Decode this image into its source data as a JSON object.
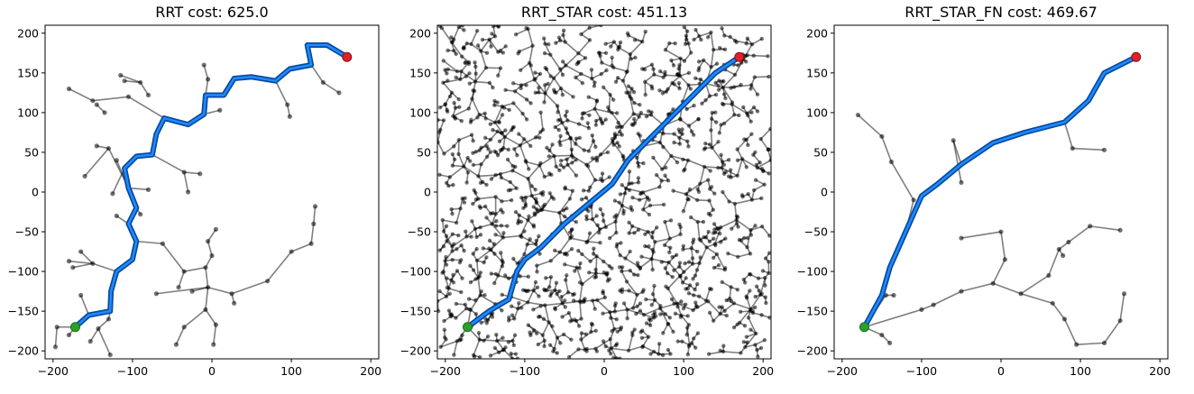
{
  "chart_data": [
    {
      "type": "scatter",
      "title": "RRT cost: 625.0",
      "xlim": [
        -210,
        210
      ],
      "ylim": [
        -210,
        210
      ],
      "xticks": [
        -200,
        -100,
        0,
        100,
        200
      ],
      "yticks": [
        -200,
        -150,
        -100,
        -50,
        0,
        50,
        100,
        150,
        200
      ],
      "grid": false,
      "start": [
        -172,
        -170
      ],
      "goal": [
        170,
        170
      ],
      "path": [
        [
          -172,
          -170
        ],
        [
          -155,
          -155
        ],
        [
          -128,
          -150
        ],
        [
          -127,
          -125
        ],
        [
          -120,
          -100
        ],
        [
          -100,
          -85
        ],
        [
          -95,
          -62
        ],
        [
          -105,
          -40
        ],
        [
          -95,
          -20
        ],
        [
          -105,
          5
        ],
        [
          -110,
          30
        ],
        [
          -95,
          45
        ],
        [
          -75,
          47
        ],
        [
          -70,
          73
        ],
        [
          -60,
          93
        ],
        [
          -30,
          85
        ],
        [
          -10,
          98
        ],
        [
          -8,
          122
        ],
        [
          15,
          122
        ],
        [
          28,
          143
        ],
        [
          50,
          145
        ],
        [
          80,
          140
        ],
        [
          98,
          155
        ],
        [
          125,
          160
        ],
        [
          120,
          185
        ],
        [
          145,
          185
        ],
        [
          170,
          170
        ]
      ],
      "edges": [
        [
          [
            -172,
            -170
          ],
          [
            -195,
            -170
          ]
        ],
        [
          [
            -195,
            -170
          ],
          [
            -197,
            -195
          ]
        ],
        [
          [
            -172,
            -170
          ],
          [
            -180,
            -180
          ]
        ],
        [
          [
            -155,
            -155
          ],
          [
            -165,
            -130
          ]
        ],
        [
          [
            -128,
            -150
          ],
          [
            -130,
            -160
          ]
        ],
        [
          [
            -130,
            -160
          ],
          [
            -143,
            -172
          ]
        ],
        [
          [
            -143,
            -172
          ],
          [
            -153,
            -188
          ]
        ],
        [
          [
            -143,
            -172
          ],
          [
            -128,
            -205
          ]
        ],
        [
          [
            -120,
            -100
          ],
          [
            -150,
            -90
          ]
        ],
        [
          [
            -150,
            -90
          ],
          [
            -165,
            -75
          ]
        ],
        [
          [
            -150,
            -90
          ],
          [
            -175,
            -95
          ]
        ],
        [
          [
            -150,
            -90
          ],
          [
            -180,
            -87
          ]
        ],
        [
          [
            -95,
            -62
          ],
          [
            -62,
            -65
          ]
        ],
        [
          [
            -62,
            -65
          ],
          [
            -35,
            -100
          ]
        ],
        [
          [
            -35,
            -100
          ],
          [
            -42,
            -120
          ]
        ],
        [
          [
            -35,
            -100
          ],
          [
            -8,
            -95
          ]
        ],
        [
          [
            -8,
            -95
          ],
          [
            0,
            -80
          ]
        ],
        [
          [
            0,
            -80
          ],
          [
            -5,
            -62
          ]
        ],
        [
          [
            -5,
            -62
          ],
          [
            5,
            -47
          ]
        ],
        [
          [
            -8,
            -95
          ],
          [
            -5,
            -120
          ]
        ],
        [
          [
            -5,
            -120
          ],
          [
            -25,
            -125
          ]
        ],
        [
          [
            -5,
            -120
          ],
          [
            -70,
            -128
          ]
        ],
        [
          [
            -5,
            -120
          ],
          [
            -8,
            -148
          ]
        ],
        [
          [
            -8,
            -148
          ],
          [
            -35,
            -170
          ]
        ],
        [
          [
            -35,
            -170
          ],
          [
            -45,
            -192
          ]
        ],
        [
          [
            -8,
            -148
          ],
          [
            5,
            -167
          ]
        ],
        [
          [
            5,
            -167
          ],
          [
            2,
            -192
          ]
        ],
        [
          [
            -5,
            -120
          ],
          [
            25,
            -128
          ]
        ],
        [
          [
            25,
            -128
          ],
          [
            28,
            -140
          ]
        ],
        [
          [
            25,
            -128
          ],
          [
            70,
            -112
          ]
        ],
        [
          [
            70,
            -112
          ],
          [
            100,
            -75
          ]
        ],
        [
          [
            100,
            -75
          ],
          [
            125,
            -65
          ]
        ],
        [
          [
            125,
            -65
          ],
          [
            128,
            -40
          ]
        ],
        [
          [
            128,
            -40
          ],
          [
            130,
            -18
          ]
        ],
        [
          [
            -105,
            -40
          ],
          [
            -120,
            -30
          ]
        ],
        [
          [
            -95,
            -20
          ],
          [
            -90,
            -28
          ]
        ],
        [
          [
            -105,
            5
          ],
          [
            -80,
            3
          ]
        ],
        [
          [
            -105,
            5
          ],
          [
            -120,
            40
          ]
        ],
        [
          [
            -75,
            47
          ],
          [
            -35,
            25
          ]
        ],
        [
          [
            -35,
            25
          ],
          [
            -30,
            0
          ]
        ],
        [
          [
            -35,
            25
          ],
          [
            -15,
            23
          ]
        ],
        [
          [
            -105,
            5
          ],
          [
            -130,
            55
          ]
        ],
        [
          [
            -130,
            55
          ],
          [
            -145,
            58
          ]
        ],
        [
          [
            -130,
            55
          ],
          [
            -160,
            20
          ]
        ],
        [
          [
            -110,
            30
          ],
          [
            -125,
            -2
          ]
        ],
        [
          [
            -60,
            93
          ],
          [
            -105,
            120
          ]
        ],
        [
          [
            -105,
            120
          ],
          [
            -150,
            115
          ]
        ],
        [
          [
            -150,
            115
          ],
          [
            -180,
            130
          ]
        ],
        [
          [
            -80,
            122
          ],
          [
            -90,
            138
          ]
        ],
        [
          [
            -90,
            138
          ],
          [
            -110,
            140
          ]
        ],
        [
          [
            -90,
            138
          ],
          [
            -115,
            147
          ]
        ],
        [
          [
            -135,
            100
          ],
          [
            -145,
            110
          ]
        ],
        [
          [
            -10,
            98
          ],
          [
            10,
            103
          ]
        ],
        [
          [
            -8,
            122
          ],
          [
            -5,
            142
          ]
        ],
        [
          [
            -5,
            142
          ],
          [
            -10,
            160
          ]
        ],
        [
          [
            80,
            140
          ],
          [
            95,
            110
          ]
        ],
        [
          [
            95,
            110
          ],
          [
            98,
            95
          ]
        ],
        [
          [
            125,
            160
          ],
          [
            140,
            138
          ]
        ],
        [
          [
            140,
            138
          ],
          [
            160,
            125
          ]
        ]
      ]
    },
    {
      "type": "scatter",
      "title": "RRT_STAR cost: 451.13",
      "xlim": [
        -210,
        210
      ],
      "ylim": [
        -210,
        210
      ],
      "xticks": [
        -200,
        -100,
        0,
        100,
        200
      ],
      "yticks": [
        -200,
        -150,
        -100,
        -50,
        0,
        50,
        100,
        150,
        200
      ],
      "grid": false,
      "start": [
        -172,
        -170
      ],
      "goal": [
        170,
        170
      ],
      "path": [
        [
          -172,
          -170
        ],
        [
          -145,
          -150
        ],
        [
          -120,
          -135
        ],
        [
          -110,
          -100
        ],
        [
          -100,
          -85
        ],
        [
          -80,
          -70
        ],
        [
          -50,
          -40
        ],
        [
          -20,
          -15
        ],
        [
          10,
          10
        ],
        [
          30,
          40
        ],
        [
          60,
          70
        ],
        [
          100,
          110
        ],
        [
          140,
          150
        ],
        [
          170,
          170
        ]
      ],
      "random_tree": true
    },
    {
      "type": "scatter",
      "title": "RRT_STAR_FN cost: 469.67",
      "xlim": [
        -210,
        210
      ],
      "ylim": [
        -210,
        210
      ],
      "xticks": [
        -200,
        -100,
        0,
        100,
        200
      ],
      "yticks": [
        -200,
        -150,
        -100,
        -50,
        0,
        50,
        100,
        150,
        200
      ],
      "grid": false,
      "start": [
        -172,
        -170
      ],
      "goal": [
        170,
        170
      ],
      "path": [
        [
          -172,
          -170
        ],
        [
          -150,
          -130
        ],
        [
          -140,
          -95
        ],
        [
          -120,
          -50
        ],
        [
          -100,
          -5
        ],
        [
          -80,
          10
        ],
        [
          -50,
          35
        ],
        [
          -10,
          62
        ],
        [
          30,
          75
        ],
        [
          80,
          88
        ],
        [
          110,
          115
        ],
        [
          130,
          150
        ],
        [
          170,
          170
        ]
      ],
      "edges": [
        [
          [
            -172,
            -170
          ],
          [
            -145,
            -130
          ]
        ],
        [
          [
            -145,
            -130
          ],
          [
            -135,
            -130
          ]
        ],
        [
          [
            -172,
            -170
          ],
          [
            -150,
            -180
          ]
        ],
        [
          [
            -150,
            -180
          ],
          [
            -140,
            -190
          ]
        ],
        [
          [
            -172,
            -170
          ],
          [
            -100,
            -148
          ]
        ],
        [
          [
            -100,
            -148
          ],
          [
            -85,
            -142
          ]
        ],
        [
          [
            -85,
            -142
          ],
          [
            -50,
            -125
          ]
        ],
        [
          [
            -50,
            -125
          ],
          [
            -10,
            -115
          ]
        ],
        [
          [
            -10,
            -115
          ],
          [
            5,
            -85
          ]
        ],
        [
          [
            5,
            -85
          ],
          [
            0,
            -50
          ]
        ],
        [
          [
            0,
            -50
          ],
          [
            -50,
            -58
          ]
        ],
        [
          [
            -10,
            -115
          ],
          [
            25,
            -128
          ]
        ],
        [
          [
            25,
            -128
          ],
          [
            65,
            -140
          ]
        ],
        [
          [
            65,
            -140
          ],
          [
            80,
            -160
          ]
        ],
        [
          [
            80,
            -160
          ],
          [
            95,
            -192
          ]
        ],
        [
          [
            95,
            -192
          ],
          [
            130,
            -190
          ]
        ],
        [
          [
            130,
            -190
          ],
          [
            150,
            -162
          ]
        ],
        [
          [
            150,
            -162
          ],
          [
            155,
            -128
          ]
        ],
        [
          [
            25,
            -128
          ],
          [
            60,
            -105
          ]
        ],
        [
          [
            60,
            -105
          ],
          [
            73,
            -72
          ]
        ],
        [
          [
            73,
            -72
          ],
          [
            78,
            -80
          ]
        ],
        [
          [
            73,
            -72
          ],
          [
            85,
            -63
          ]
        ],
        [
          [
            85,
            -63
          ],
          [
            112,
            -43
          ]
        ],
        [
          [
            112,
            -43
          ],
          [
            150,
            -48
          ]
        ],
        [
          [
            -120,
            -50
          ],
          [
            -110,
            -10
          ]
        ],
        [
          [
            -110,
            -10
          ],
          [
            -138,
            38
          ]
        ],
        [
          [
            -138,
            38
          ],
          [
            -150,
            70
          ]
        ],
        [
          [
            -150,
            70
          ],
          [
            -180,
            97
          ]
        ],
        [
          [
            -50,
            35
          ],
          [
            -60,
            65
          ]
        ],
        [
          [
            -60,
            65
          ],
          [
            -50,
            12
          ]
        ],
        [
          [
            80,
            88
          ],
          [
            90,
            55
          ]
        ],
        [
          [
            90,
            55
          ],
          [
            130,
            53
          ]
        ]
      ]
    }
  ]
}
